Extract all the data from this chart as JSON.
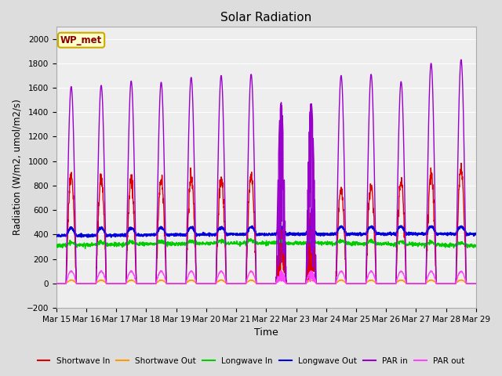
{
  "title": "Solar Radiation",
  "ylabel": "Radiation (W/m2, umol/m2/s)",
  "xlabel": "Time",
  "ylim": [
    -200,
    2100
  ],
  "yticks": [
    -200,
    0,
    200,
    400,
    600,
    800,
    1000,
    1200,
    1400,
    1600,
    1800,
    2000
  ],
  "bg_color": "#e8e8e8",
  "plot_bg_color": "#f0f0f0",
  "legend_label": "WP_met",
  "series": {
    "shortwave_in": {
      "color": "#dd0000",
      "label": "Shortwave In"
    },
    "shortwave_out": {
      "color": "#ff9900",
      "label": "Shortwave Out"
    },
    "longwave_in": {
      "color": "#00cc00",
      "label": "Longwave In"
    },
    "longwave_out": {
      "color": "#0000dd",
      "label": "Longwave Out"
    },
    "par_in": {
      "color": "#9900cc",
      "label": "PAR in"
    },
    "par_out": {
      "color": "#ff44ff",
      "label": "PAR out"
    }
  },
  "n_days": 14,
  "pts_per_day": 144
}
